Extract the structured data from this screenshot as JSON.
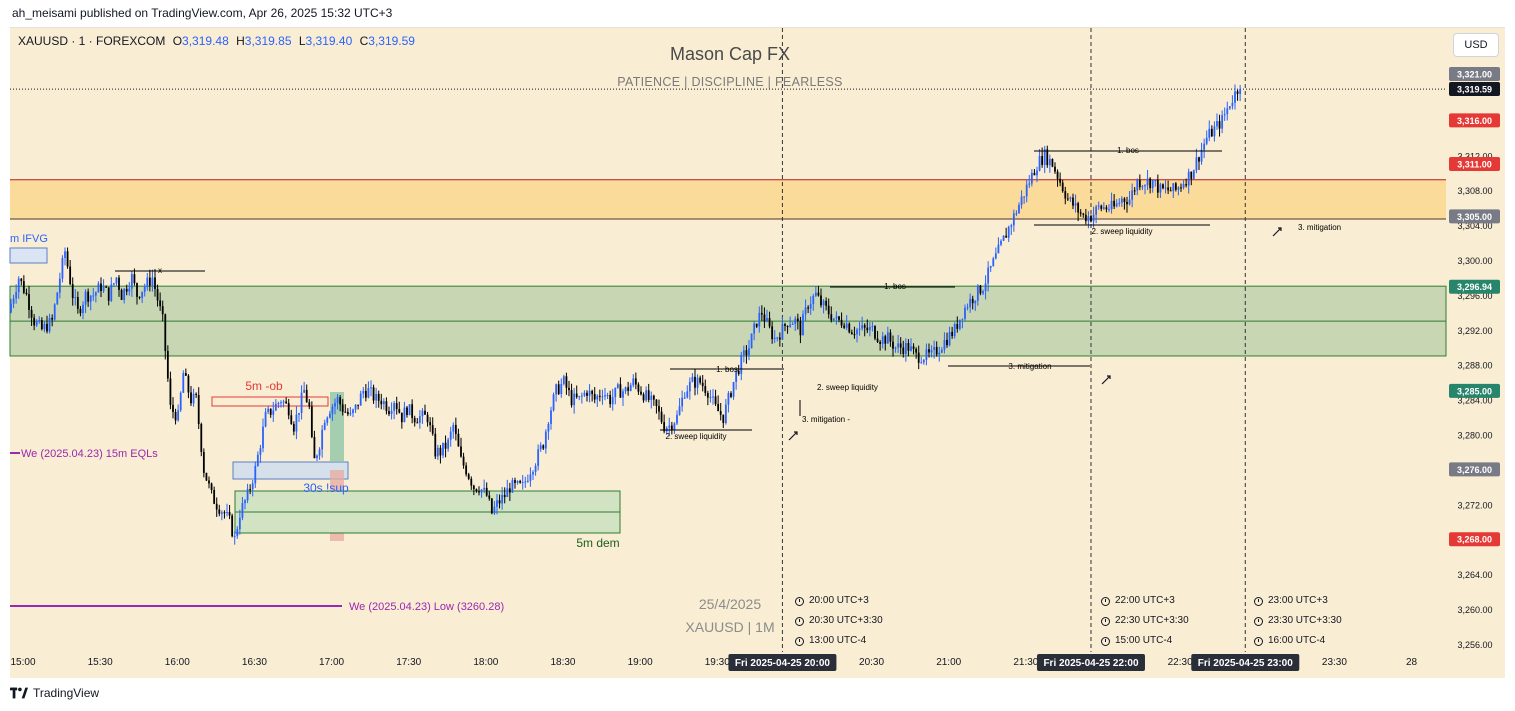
{
  "header": {
    "published": "ah_meisami published on TradingView.com, Apr 26, 2025 15:32 UTC+3"
  },
  "symbol": {
    "name": "XAUUSD · 1 · FOREXCOM",
    "open_label": "O",
    "open": "3,319.48",
    "high_label": "H",
    "high": "3,319.85",
    "low_label": "L",
    "low": "3,319.40",
    "close_label": "C",
    "close": "3,319.59"
  },
  "brand": {
    "title": "Mason Cap FX",
    "subtitle": "PATIENCE   |   DISCIPLINE   |   FEARLESS"
  },
  "currency_button": "USD",
  "watermark": {
    "date": "25/4/2025",
    "symbol": "XAUUSD  |  1M"
  },
  "timezones": [
    {
      "rows": [
        "20:00 UTC+3",
        "20:30 UTC+3:30",
        "13:00 UTC-4"
      ]
    },
    {
      "rows": [
        "22:00 UTC+3",
        "22:30 UTC+3:30",
        "15:00 UTC-4"
      ]
    },
    {
      "rows": [
        "23:00 UTC+3",
        "23:30 UTC+3:30",
        "16:00 UTC-4"
      ]
    }
  ],
  "footer": {
    "brand": "TradingView"
  },
  "colors": {
    "background": "#f9edd3",
    "up_candle": "#2962ff",
    "down_candle": "#000000",
    "yellow_zone": "#fadb9a",
    "green_zone": "#c9d6b4",
    "purple": "#9c27b0",
    "price_badge": "#131722",
    "red_badge": "#e53935",
    "green_badge": "#26856a",
    "gray_badge": "#787b86"
  },
  "chart_data": {
    "type": "candlestick",
    "symbol": "XAUUSD",
    "interval": "1",
    "ylim": [
      3253,
      3322
    ],
    "y_ticks": [
      3256,
      3260,
      3264,
      3268,
      3272,
      3276,
      3280,
      3284,
      3288,
      3292,
      3296,
      3300,
      3304,
      3308,
      3312,
      3316
    ],
    "y_tick_labels": [
      "3,256.00",
      "3,260.00",
      "3,264.00",
      "3,268.00",
      "3,272.00",
      "3,276.00",
      "3,280.00",
      "3,284.00",
      "3,288.00",
      "3,292.00",
      "3,296.00",
      "3,300.00",
      "3,304.00",
      "3,308.00",
      "3,312.00",
      "3,316.00"
    ],
    "x_ticks": [
      {
        "label": "15:00",
        "t": 0
      },
      {
        "label": "15:30",
        "t": 30
      },
      {
        "label": "16:00",
        "t": 60
      },
      {
        "label": "16:30",
        "t": 90
      },
      {
        "label": "17:00",
        "t": 120
      },
      {
        "label": "17:30",
        "t": 150
      },
      {
        "label": "18:00",
        "t": 180
      },
      {
        "label": "18:30",
        "t": 210
      },
      {
        "label": "19:00",
        "t": 240
      },
      {
        "label": "19:30",
        "t": 270
      },
      {
        "label": "20:30",
        "t": 330
      },
      {
        "label": "21:00",
        "t": 360
      },
      {
        "label": "21:30",
        "t": 390
      },
      {
        "label": "22:30",
        "t": 450
      },
      {
        "label": "23:30",
        "t": 510
      },
      {
        "label": "28",
        "t": 540
      }
    ],
    "x_highlights": [
      {
        "label": "Fri 2025-04-25   20:00",
        "t": 300
      },
      {
        "label": "Fri 2025-04-25   22:00",
        "t": 420
      },
      {
        "label": "Fri 2025-04-25   23:00",
        "t": 480
      }
    ],
    "price_badges": [
      {
        "label": "3,321.00",
        "price": 3321.0,
        "kind": "gray"
      },
      {
        "label": "3,319.59",
        "price": 3319.59,
        "kind": "dark"
      },
      {
        "label": "3,316.00",
        "price": 3316.0,
        "kind": "red"
      },
      {
        "label": "3,311.00",
        "price": 3311.0,
        "kind": "red"
      },
      {
        "label": "3,305.00",
        "price": 3305.0,
        "kind": "gray"
      },
      {
        "label": "3,296.94",
        "price": 3296.94,
        "kind": "green"
      },
      {
        "label": "3,285.00",
        "price": 3285.0,
        "kind": "green"
      },
      {
        "label": "3,276.00",
        "price": 3276.0,
        "kind": "gray"
      },
      {
        "label": "3,268.00",
        "price": 3268.0,
        "kind": "red"
      }
    ],
    "zones": [
      {
        "kind": "yellow",
        "top": 3309.2,
        "bottom": 3304.7
      },
      {
        "kind": "green",
        "top": 3297.0,
        "bottom": 3289.0,
        "mid": 3293.0
      }
    ],
    "session_lines_t": [
      300,
      420,
      480
    ],
    "current_price": 3319.59,
    "waypoints": [
      [
        0,
        3294
      ],
      [
        4,
        3298
      ],
      [
        7,
        3296
      ],
      [
        10,
        3293
      ],
      [
        13,
        3292
      ],
      [
        17,
        3293
      ],
      [
        20,
        3298
      ],
      [
        22,
        3301
      ],
      [
        25,
        3296
      ],
      [
        27,
        3294
      ],
      [
        30,
        3296
      ],
      [
        33,
        3296
      ],
      [
        36,
        3297
      ],
      [
        39,
        3296
      ],
      [
        42,
        3298
      ],
      [
        44,
        3296
      ],
      [
        48,
        3298
      ],
      [
        50,
        3296
      ],
      [
        53,
        3297
      ],
      [
        56,
        3298
      ],
      [
        60,
        3293
      ],
      [
        63,
        3283
      ],
      [
        66,
        3282
      ],
      [
        68,
        3287
      ],
      [
        71,
        3284
      ],
      [
        73,
        3284
      ],
      [
        76,
        3276
      ],
      [
        79,
        3273
      ],
      [
        81,
        3272
      ],
      [
        84,
        3271
      ],
      [
        86,
        3270
      ],
      [
        88,
        3268
      ],
      [
        90,
        3271
      ],
      [
        93,
        3273
      ],
      [
        96,
        3276
      ],
      [
        98,
        3279
      ],
      [
        100,
        3282
      ],
      [
        103,
        3283
      ],
      [
        106,
        3284
      ],
      [
        109,
        3283
      ],
      [
        111,
        3281
      ],
      [
        113,
        3283
      ],
      [
        115,
        3285
      ],
      [
        117,
        3283
      ],
      [
        118,
        3279
      ],
      [
        119,
        3277
      ],
      [
        121,
        3279
      ],
      [
        123,
        3282
      ],
      [
        125,
        3283
      ],
      [
        128,
        3284
      ],
      [
        130,
        3283
      ],
      [
        133,
        3282
      ],
      [
        135,
        3283
      ],
      [
        138,
        3285
      ],
      [
        140,
        3285
      ],
      [
        143,
        3284
      ],
      [
        145,
        3284
      ],
      [
        148,
        3283
      ],
      [
        150,
        3284
      ],
      [
        153,
        3282
      ],
      [
        155,
        3283
      ],
      [
        158,
        3282
      ],
      [
        161,
        3282
      ],
      [
        163,
        3282
      ],
      [
        166,
        3278
      ],
      [
        168,
        3278
      ],
      [
        171,
        3279
      ],
      [
        173,
        3281
      ],
      [
        176,
        3277
      ],
      [
        178,
        3276
      ],
      [
        181,
        3274
      ],
      [
        183,
        3274
      ],
      [
        186,
        3273
      ],
      [
        188,
        3271
      ],
      [
        190,
        3272
      ],
      [
        193,
        3273
      ],
      [
        195,
        3274
      ],
      [
        198,
        3274
      ],
      [
        200,
        3274
      ],
      [
        203,
        3276
      ],
      [
        205,
        3277
      ],
      [
        208,
        3279
      ],
      [
        210,
        3282
      ],
      [
        213,
        3285
      ],
      [
        216,
        3286
      ],
      [
        219,
        3284
      ],
      [
        222,
        3284
      ],
      [
        225,
        3285
      ],
      [
        228,
        3284
      ],
      [
        231,
        3285
      ],
      [
        234,
        3284
      ],
      [
        237,
        3285
      ],
      [
        240,
        3285
      ],
      [
        243,
        3286
      ],
      [
        246,
        3285
      ],
      [
        249,
        3284
      ],
      [
        252,
        3283
      ],
      [
        255,
        3281
      ],
      [
        257,
        3281
      ],
      [
        260,
        3282
      ],
      [
        263,
        3285
      ],
      [
        266,
        3286
      ],
      [
        269,
        3286
      ],
      [
        272,
        3285
      ],
      [
        275,
        3283
      ],
      [
        278,
        3282
      ],
      [
        280,
        3284
      ],
      [
        283,
        3287
      ],
      [
        286,
        3289
      ],
      [
        288,
        3290
      ],
      [
        291,
        3293
      ],
      [
        293,
        3294
      ],
      [
        296,
        3292
      ],
      [
        298,
        3291
      ],
      [
        301,
        3292
      ],
      [
        303,
        3293
      ],
      [
        306,
        3293
      ],
      [
        308,
        3292
      ],
      [
        311,
        3295
      ],
      [
        314,
        3296
      ],
      [
        316,
        3295
      ],
      [
        319,
        3294
      ],
      [
        322,
        3293
      ],
      [
        325,
        3293
      ],
      [
        328,
        3292
      ],
      [
        330,
        3292
      ],
      [
        333,
        3292
      ],
      [
        336,
        3292
      ],
      [
        339,
        3291
      ],
      [
        342,
        3291
      ],
      [
        345,
        3290
      ],
      [
        348,
        3290
      ],
      [
        350,
        3290
      ],
      [
        353,
        3289
      ],
      [
        356,
        3289
      ],
      [
        359,
        3289
      ],
      [
        362,
        3290
      ],
      [
        365,
        3291
      ],
      [
        368,
        3292
      ],
      [
        371,
        3294
      ],
      [
        373,
        3295
      ],
      [
        376,
        3296
      ],
      [
        379,
        3297
      ],
      [
        382,
        3299
      ],
      [
        385,
        3301
      ],
      [
        388,
        3303
      ],
      [
        391,
        3305
      ],
      [
        394,
        3307
      ],
      [
        397,
        3309
      ],
      [
        400,
        3311
      ],
      [
        403,
        3312
      ],
      [
        406,
        3311
      ],
      [
        409,
        3309
      ],
      [
        412,
        3307
      ],
      [
        415,
        3306
      ],
      [
        418,
        3305
      ],
      [
        421,
        3305
      ],
      [
        424,
        3306
      ],
      [
        427,
        3306
      ],
      [
        430,
        3306
      ],
      [
        433,
        3307
      ],
      [
        436,
        3307
      ],
      [
        439,
        3309
      ],
      [
        442,
        3309
      ],
      [
        445,
        3309
      ],
      [
        448,
        3308
      ],
      [
        451,
        3308
      ],
      [
        454,
        3308
      ],
      [
        457,
        3309
      ],
      [
        460,
        3310
      ],
      [
        463,
        3312
      ],
      [
        466,
        3314
      ],
      [
        469,
        3315
      ],
      [
        472,
        3316
      ],
      [
        475,
        3318
      ],
      [
        478,
        3319.6
      ]
    ],
    "annotations": [
      {
        "text": "1. bos"
      },
      {
        "text": "2. sweep liquidity"
      },
      {
        "text": "3. mitigation -"
      },
      {
        "text": "2. sweep liquidity"
      },
      {
        "text": "1. bos"
      },
      {
        "text": "3. mitigation"
      },
      {
        "text": "1. bos"
      },
      {
        "text": "2. sweep liquidity"
      },
      {
        "text": "3. mitigation"
      },
      {
        "text": "x"
      },
      {
        "text": "m IFVG"
      },
      {
        "text": "5m -ob"
      },
      {
        "text": "30s !sup"
      },
      {
        "text": "5m dem"
      },
      {
        "text": "We (2025.04.23)  15m EQLs"
      },
      {
        "text": "We (2025.04.23) Low (3260.28)"
      }
    ]
  }
}
